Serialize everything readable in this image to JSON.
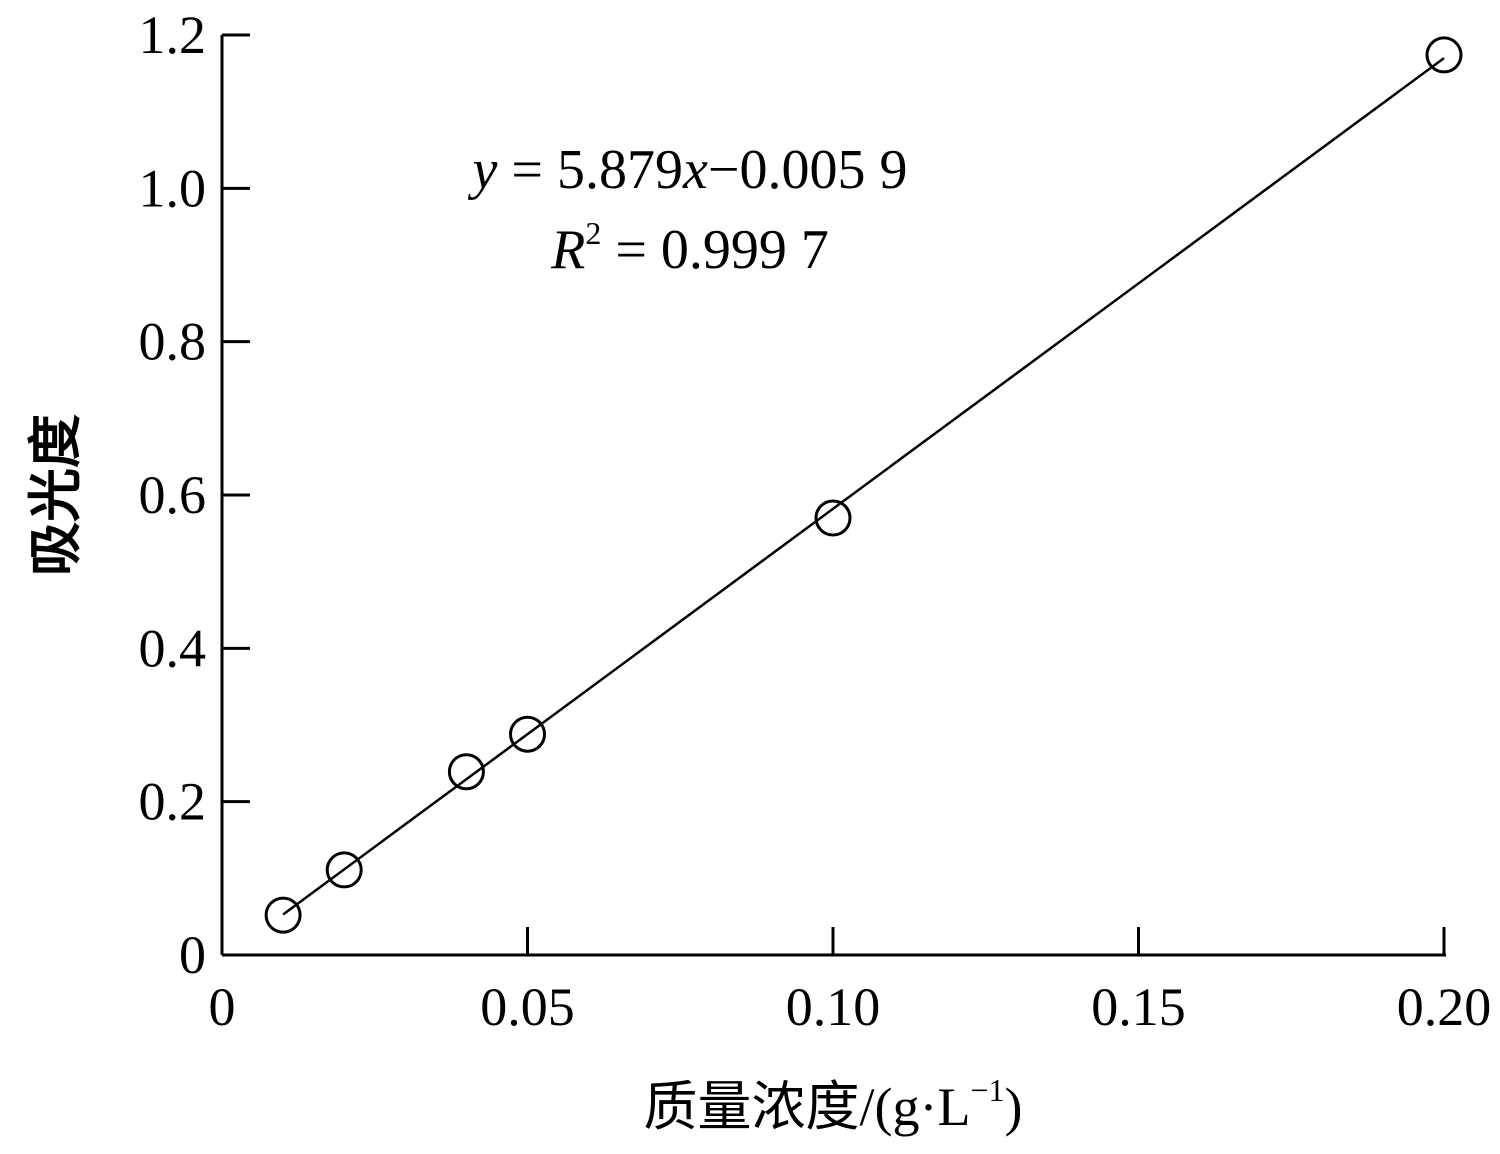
{
  "chart_data": {
    "type": "scatter",
    "x_label_parts": [
      "质量浓度/(g·L",
      "−1",
      ")"
    ],
    "y_label": "吸光度",
    "equation_parts": [
      "y",
      " = 5.879",
      "x",
      "−0.005 9"
    ],
    "r2_parts": [
      "R",
      "2",
      " = 0.999 7"
    ],
    "x": [
      0.01,
      0.02,
      0.04,
      0.05,
      0.1,
      0.2
    ],
    "series": [
      {
        "color": "#000000",
        "values": [
          0.052,
          0.111,
          0.239,
          0.288,
          0.57,
          1.174
        ]
      }
    ],
    "fit": {
      "slope": 5.879,
      "intercept": -0.0059
    },
    "xlim": [
      0,
      0.2
    ],
    "ylim": [
      0,
      1.2
    ],
    "xticks": [
      0,
      0.05,
      {
        "value": 0.1,
        "label": "0.10"
      },
      0.15,
      {
        "value": 0.2,
        "label": "0.20"
      }
    ],
    "yticks": [
      0,
      0.2,
      0.4,
      0.6,
      0.8,
      {
        "value": 1.0,
        "label": "1.0"
      },
      1.2
    ],
    "grid": false
  }
}
